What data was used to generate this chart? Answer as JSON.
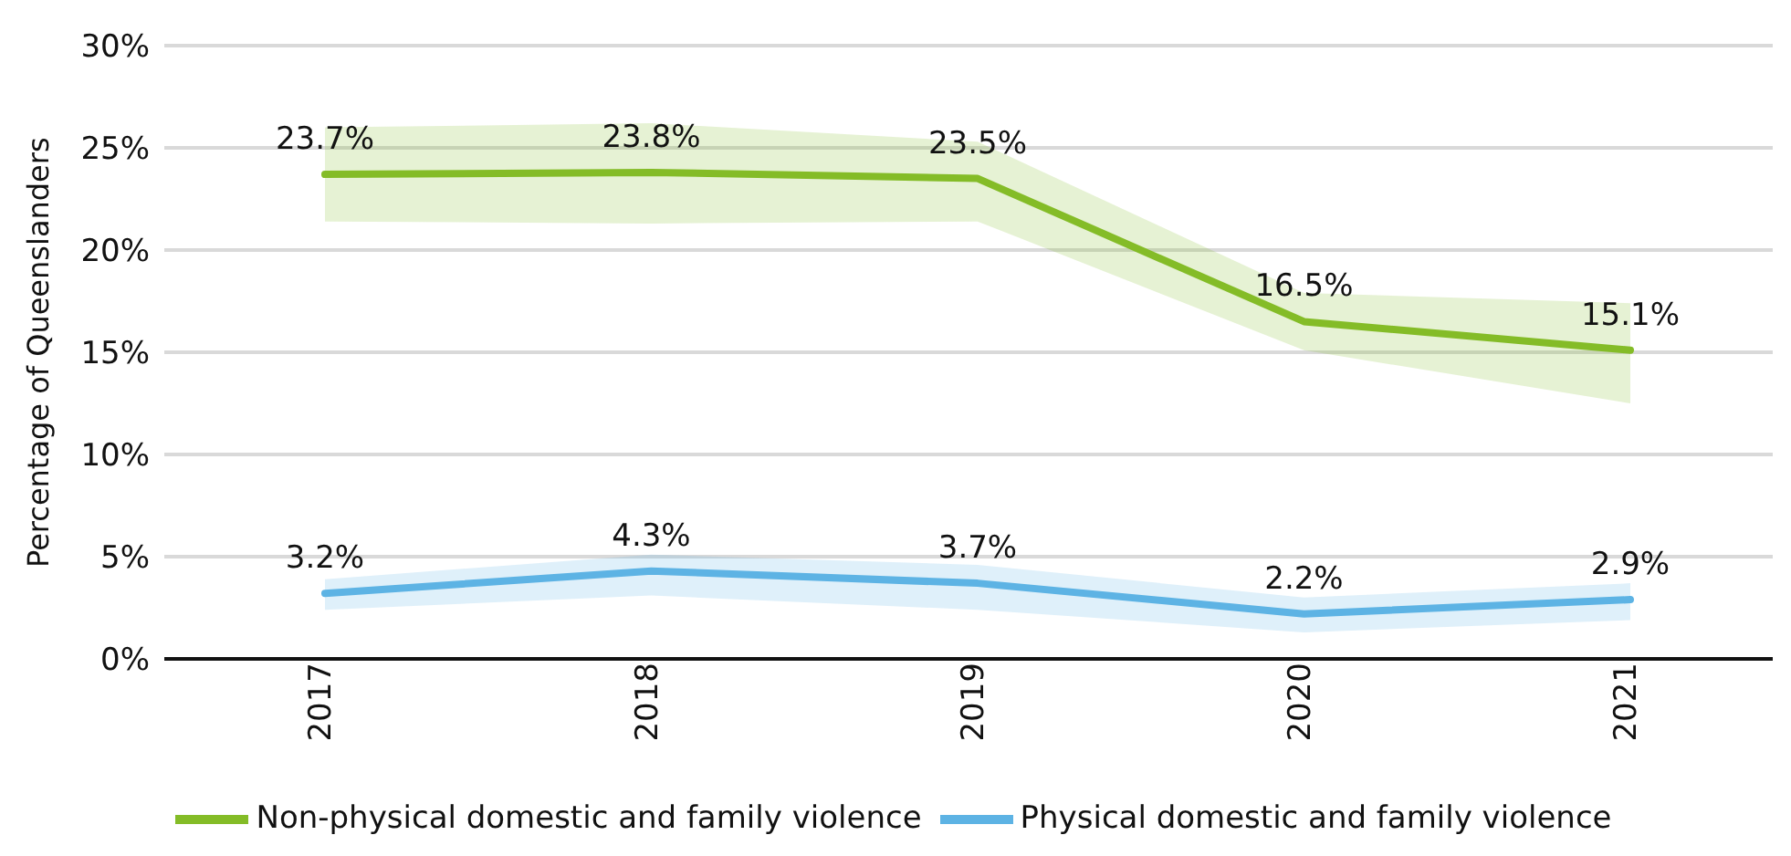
{
  "chart_data": {
    "type": "line",
    "ylabel": "Percentage of Queenslanders",
    "categories": [
      "2017",
      "2018",
      "2019",
      "2020",
      "2021"
    ],
    "series": [
      {
        "name": "Non-physical domestic and family violence",
        "color": "#84bc27",
        "values": [
          23.7,
          23.8,
          23.5,
          16.5,
          15.1
        ],
        "lower": [
          21.4,
          21.3,
          21.4,
          15.1,
          12.5
        ],
        "upper": [
          26.0,
          26.2,
          25.3,
          17.9,
          17.4
        ],
        "value_labels": [
          "23.7%",
          "23.8%",
          "23.5%",
          "16.5%",
          "15.1%"
        ]
      },
      {
        "name": "Physical domestic and family violence",
        "color": "#5db3e4",
        "values": [
          3.2,
          4.3,
          3.7,
          2.2,
          2.9
        ],
        "lower": [
          2.4,
          3.1,
          2.4,
          1.3,
          1.9
        ],
        "upper": [
          3.9,
          5.1,
          4.6,
          3.0,
          3.7
        ],
        "value_labels": [
          "3.2%",
          "4.3%",
          "3.7%",
          "2.2%",
          "2.9%"
        ]
      }
    ],
    "ylim": [
      0,
      30
    ],
    "yticks": [
      {
        "value": 0,
        "label": "0%"
      },
      {
        "value": 5,
        "label": "5%"
      },
      {
        "value": 10,
        "label": "10%"
      },
      {
        "value": 15,
        "label": "15%"
      },
      {
        "value": 20,
        "label": "20%"
      },
      {
        "value": 25,
        "label": "25%"
      },
      {
        "value": 30,
        "label": "30%"
      }
    ],
    "grid": "y",
    "legend": "bottom",
    "marker": "none",
    "line_style": "solid"
  }
}
